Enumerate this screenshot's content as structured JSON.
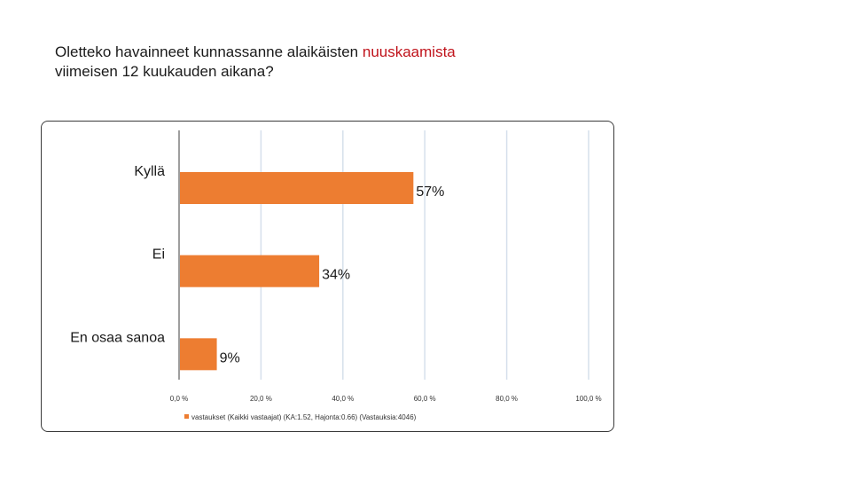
{
  "title": {
    "part1": "Oletteko havainneet kunnassanne alaikäisten ",
    "highlight": "nuuskaamista",
    "part2": "viimeisen 12 kuukauden aikana?"
  },
  "colors": {
    "bar": "#ed7d31",
    "highlight": "#c0141c",
    "grid": "#d6e0ec",
    "axis": "#7f7f7f"
  },
  "chart_data": {
    "type": "bar",
    "orientation": "horizontal",
    "categories": [
      "Kyllä",
      "Ei",
      "En osaa sanoa"
    ],
    "values": [
      57,
      34,
      9
    ],
    "value_labels": [
      "57%",
      "34%",
      "9%"
    ],
    "xlim": [
      0,
      100
    ],
    "xticks": [
      0,
      20,
      40,
      60,
      80,
      100
    ],
    "xtick_labels": [
      "0,0 %",
      "20,0 %",
      "40,0 %",
      "60,0 %",
      "80,0 %",
      "100,0 %"
    ],
    "grid": true,
    "legend": {
      "placement": "bottom",
      "entries": [
        "vastaukset (Kaikki vastaajat) (KA:1.52, Hajonta:0.66) (Vastauksia:4046)"
      ]
    }
  }
}
